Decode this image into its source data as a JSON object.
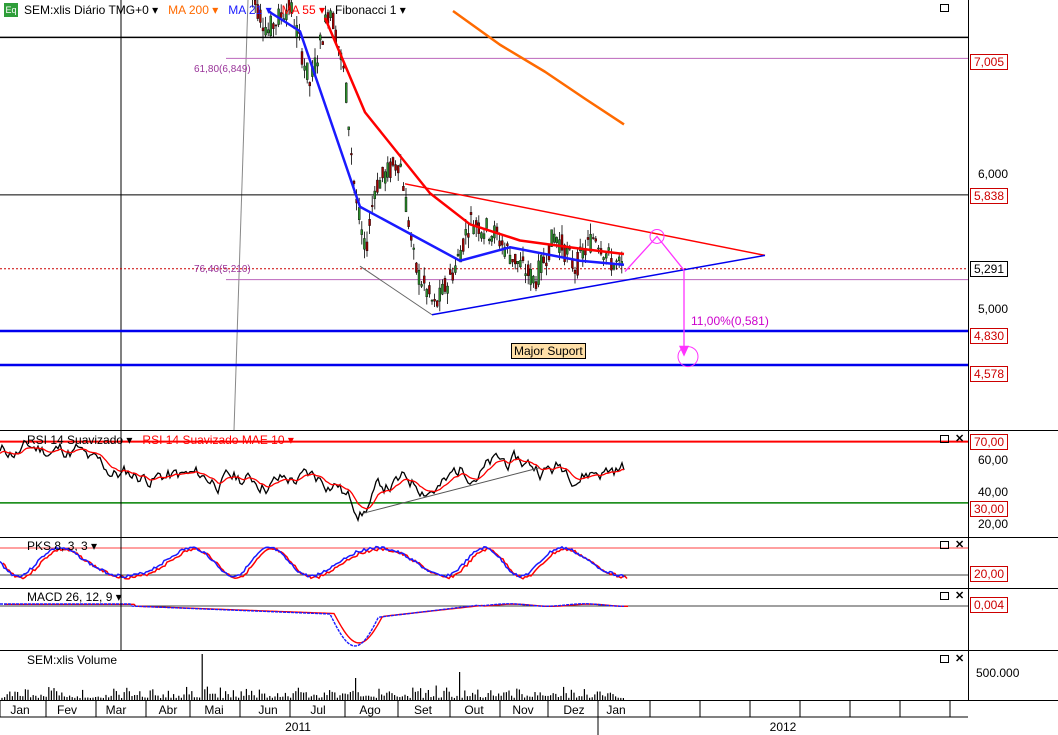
{
  "window": {
    "instrument_label": "SEM:xlis Diário TMG+0",
    "logo_text": "Eq"
  },
  "price_pane": {
    "legend": [
      {
        "label": "MA 200",
        "color": "#ff6a00"
      },
      {
        "label": "MA 21",
        "color": "#1a1aff"
      },
      {
        "label": "MA 55",
        "color": "#ff0000"
      },
      {
        "label": "Fibonacci 1",
        "color": "#000000"
      }
    ],
    "fib_labels": [
      "61,80(6,849)",
      "76,40(5,210)"
    ],
    "projection_label": "11,00%(0,581)",
    "support_label": "Major Suport",
    "price_tags": [
      {
        "value": "7,005",
        "color": "#cc0000"
      },
      {
        "value": "5,838",
        "color": "#cc0000"
      },
      {
        "value": "5,291",
        "color": "#000000"
      },
      {
        "value": "4,830",
        "color": "#cc0000"
      },
      {
        "value": "4,578",
        "color": "#cc0000"
      }
    ],
    "axis_ticks": [
      "6,000",
      "5,000"
    ]
  },
  "rsi_pane": {
    "legend": [
      {
        "label": "RSI 14 Suavizado",
        "color": "#000000"
      },
      {
        "label": "RSI 14 Suavizado MAE 10",
        "color": "#ff0000"
      }
    ],
    "tags": [
      {
        "value": "70,00",
        "color": "#cc0000"
      },
      {
        "value": "30,00",
        "color": "#cc0000"
      }
    ],
    "axis_ticks": [
      "60,00",
      "40,00",
      "20,00"
    ]
  },
  "pks_pane": {
    "legend": [
      {
        "label": "PKS 8, 3, 3",
        "color": "#1a1aff"
      }
    ],
    "tags": [
      {
        "value": "20,00",
        "color": "#cc0000"
      }
    ]
  },
  "macd_pane": {
    "legend": [
      {
        "label": "MACD 26, 12, 9",
        "color": "#1a1aff"
      }
    ],
    "tags": [
      {
        "value": "0,004",
        "color": "#cc0000"
      }
    ]
  },
  "volume_pane": {
    "legend": [
      {
        "label": "SEM:xlis Volume",
        "color": "#000000"
      }
    ],
    "axis_ticks": [
      "500.000"
    ]
  },
  "time_axis": {
    "months": [
      "Jan",
      "Fev",
      "Mar",
      "Abr",
      "Mai",
      "Jun",
      "Jul",
      "Ago",
      "Set",
      "Out",
      "Nov",
      "Dez",
      "Jan"
    ],
    "years": [
      "2011",
      "2012"
    ]
  },
  "chart_data": {
    "type": "candlestick",
    "title": "SEM:xlis Diário TMG+0",
    "period": "daily",
    "y_axis_ticks": [
      6.0,
      5.0
    ],
    "x_axis_months": [
      "Jan",
      "Fev",
      "Mar",
      "Abr",
      "Mai",
      "Jun",
      "Jul",
      "Ago",
      "Set",
      "Out",
      "Nov",
      "Dez",
      "Jan"
    ],
    "x_axis_years": [
      "2011",
      "2012"
    ],
    "last_close": 5.291,
    "horizontal_levels": [
      7.005,
      5.838,
      5.291,
      4.83,
      4.578
    ],
    "fibonacci_levels": [
      {
        "ratio": 61.8,
        "price": 6.849
      },
      {
        "ratio": 76.4,
        "price": 5.21
      }
    ],
    "closes": [
      {
        "month": "Jun",
        "close": 7.15
      },
      {
        "month": "Jul",
        "close": 7.05
      },
      {
        "month": "Ago",
        "close": 5.25
      },
      {
        "month": "Set",
        "close": 5.05
      },
      {
        "month": "Out",
        "close": 5.55
      },
      {
        "month": "Nov",
        "close": 5.3
      },
      {
        "month": "Dez",
        "close": 5.35
      },
      {
        "month": "Jan",
        "close": 5.291
      }
    ],
    "series": [
      {
        "name": "MA 200",
        "points": [
          {
            "month": "Set",
            "value": 7.2
          },
          {
            "month": "Out",
            "value": 6.95
          },
          {
            "month": "Nov",
            "value": 6.75
          },
          {
            "month": "Dez",
            "value": 6.55
          },
          {
            "month": "Jan",
            "value": 6.36
          }
        ]
      },
      {
        "name": "MA 21",
        "points": [
          {
            "month": "Jun",
            "value": 7.2
          },
          {
            "month": "Jul",
            "value": 7.05
          },
          {
            "month": "Ago",
            "value": 5.75
          },
          {
            "month": "Set",
            "value": 5.55
          },
          {
            "month": "Out",
            "value": 5.35
          },
          {
            "month": "Nov",
            "value": 5.45
          },
          {
            "month": "Dez",
            "value": 5.35
          },
          {
            "month": "Jan",
            "value": 5.32
          }
        ]
      },
      {
        "name": "MA 55",
        "points": [
          {
            "month": "Jul",
            "value": 7.15
          },
          {
            "month": "Ago",
            "value": 6.45
          },
          {
            "month": "Set",
            "value": 5.85
          },
          {
            "month": "Out",
            "value": 5.62
          },
          {
            "month": "Nov",
            "value": 5.5
          },
          {
            "month": "Dez",
            "value": 5.44
          },
          {
            "month": "Jan",
            "value": 5.4
          }
        ]
      }
    ],
    "annotations": [
      "Major Suport",
      "11,00%(0,581)"
    ]
  }
}
